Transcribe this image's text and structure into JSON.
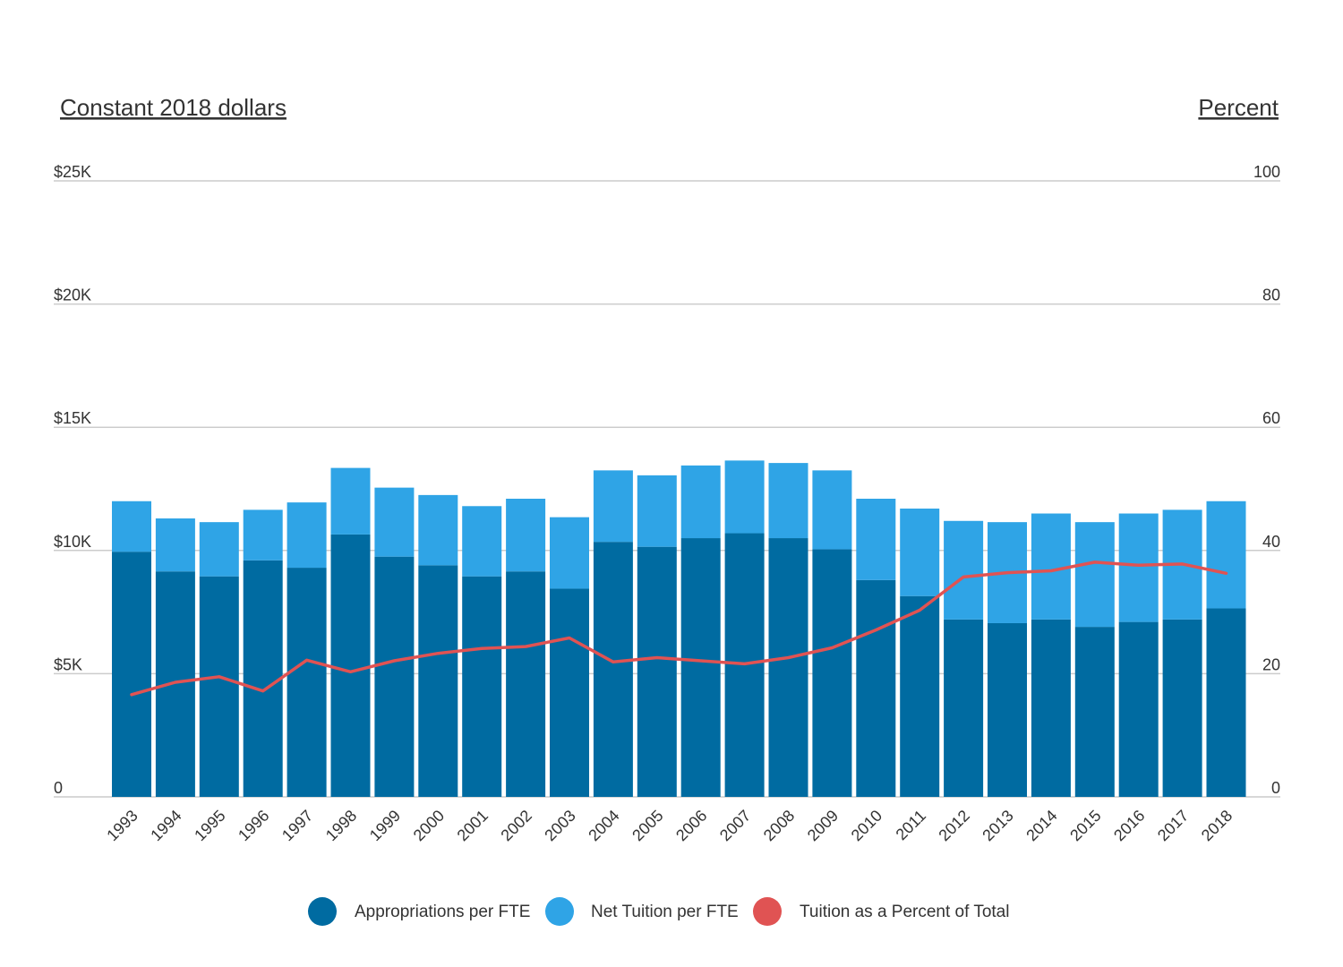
{
  "chart_data": {
    "type": "bar",
    "stacked": true,
    "title": "",
    "left_axis_title": "Constant 2018 dollars",
    "right_axis_title": "Percent",
    "left_ticks": [
      "0",
      "$5K",
      "$10K",
      "$15K",
      "$20K",
      "$25K"
    ],
    "right_ticks": [
      "0",
      "20",
      "40",
      "60",
      "80",
      "100"
    ],
    "ylim_left": [
      0,
      25000
    ],
    "ylim_right": [
      0,
      100
    ],
    "grid": true,
    "legend_position": "bottom",
    "categories": [
      "1993",
      "1994",
      "1995",
      "1996",
      "1997",
      "1998",
      "1999",
      "2000",
      "2001",
      "2002",
      "2003",
      "2004",
      "2005",
      "2006",
      "2007",
      "2008",
      "2009",
      "2010",
      "2011",
      "2012",
      "2013",
      "2014",
      "2015",
      "2016",
      "2017",
      "2018"
    ],
    "series": [
      {
        "name": "Appropriations per FTE",
        "color": "#006ba1",
        "type": "bar",
        "axis": "left",
        "values": [
          9950,
          9150,
          8950,
          9600,
          9300,
          10650,
          9750,
          9400,
          8950,
          9150,
          8450,
          10350,
          10150,
          10500,
          10700,
          10500,
          10050,
          8800,
          8150,
          7200,
          7050,
          7200,
          6900,
          7100,
          7200,
          7650
        ]
      },
      {
        "name": "Net Tuition per FTE",
        "color": "#2fa4e6",
        "type": "bar",
        "axis": "left",
        "values": [
          2050,
          2150,
          2200,
          2050,
          2650,
          2700,
          2800,
          2850,
          2850,
          2950,
          2900,
          2900,
          2900,
          2950,
          2950,
          3050,
          3200,
          3300,
          3550,
          4000,
          4100,
          4300,
          4250,
          4400,
          4450,
          4350
        ]
      },
      {
        "name": "Tuition as a Percent of Total",
        "color": "#e05353",
        "type": "line",
        "axis": "right",
        "values": [
          16.6,
          18.6,
          19.5,
          17.2,
          22.2,
          20.3,
          22.1,
          23.3,
          24.1,
          24.4,
          25.8,
          21.9,
          22.6,
          22.1,
          21.6,
          22.6,
          24.2,
          27.1,
          30.3,
          35.7,
          36.4,
          36.7,
          38.1,
          37.6,
          37.8,
          36.3
        ]
      }
    ]
  }
}
